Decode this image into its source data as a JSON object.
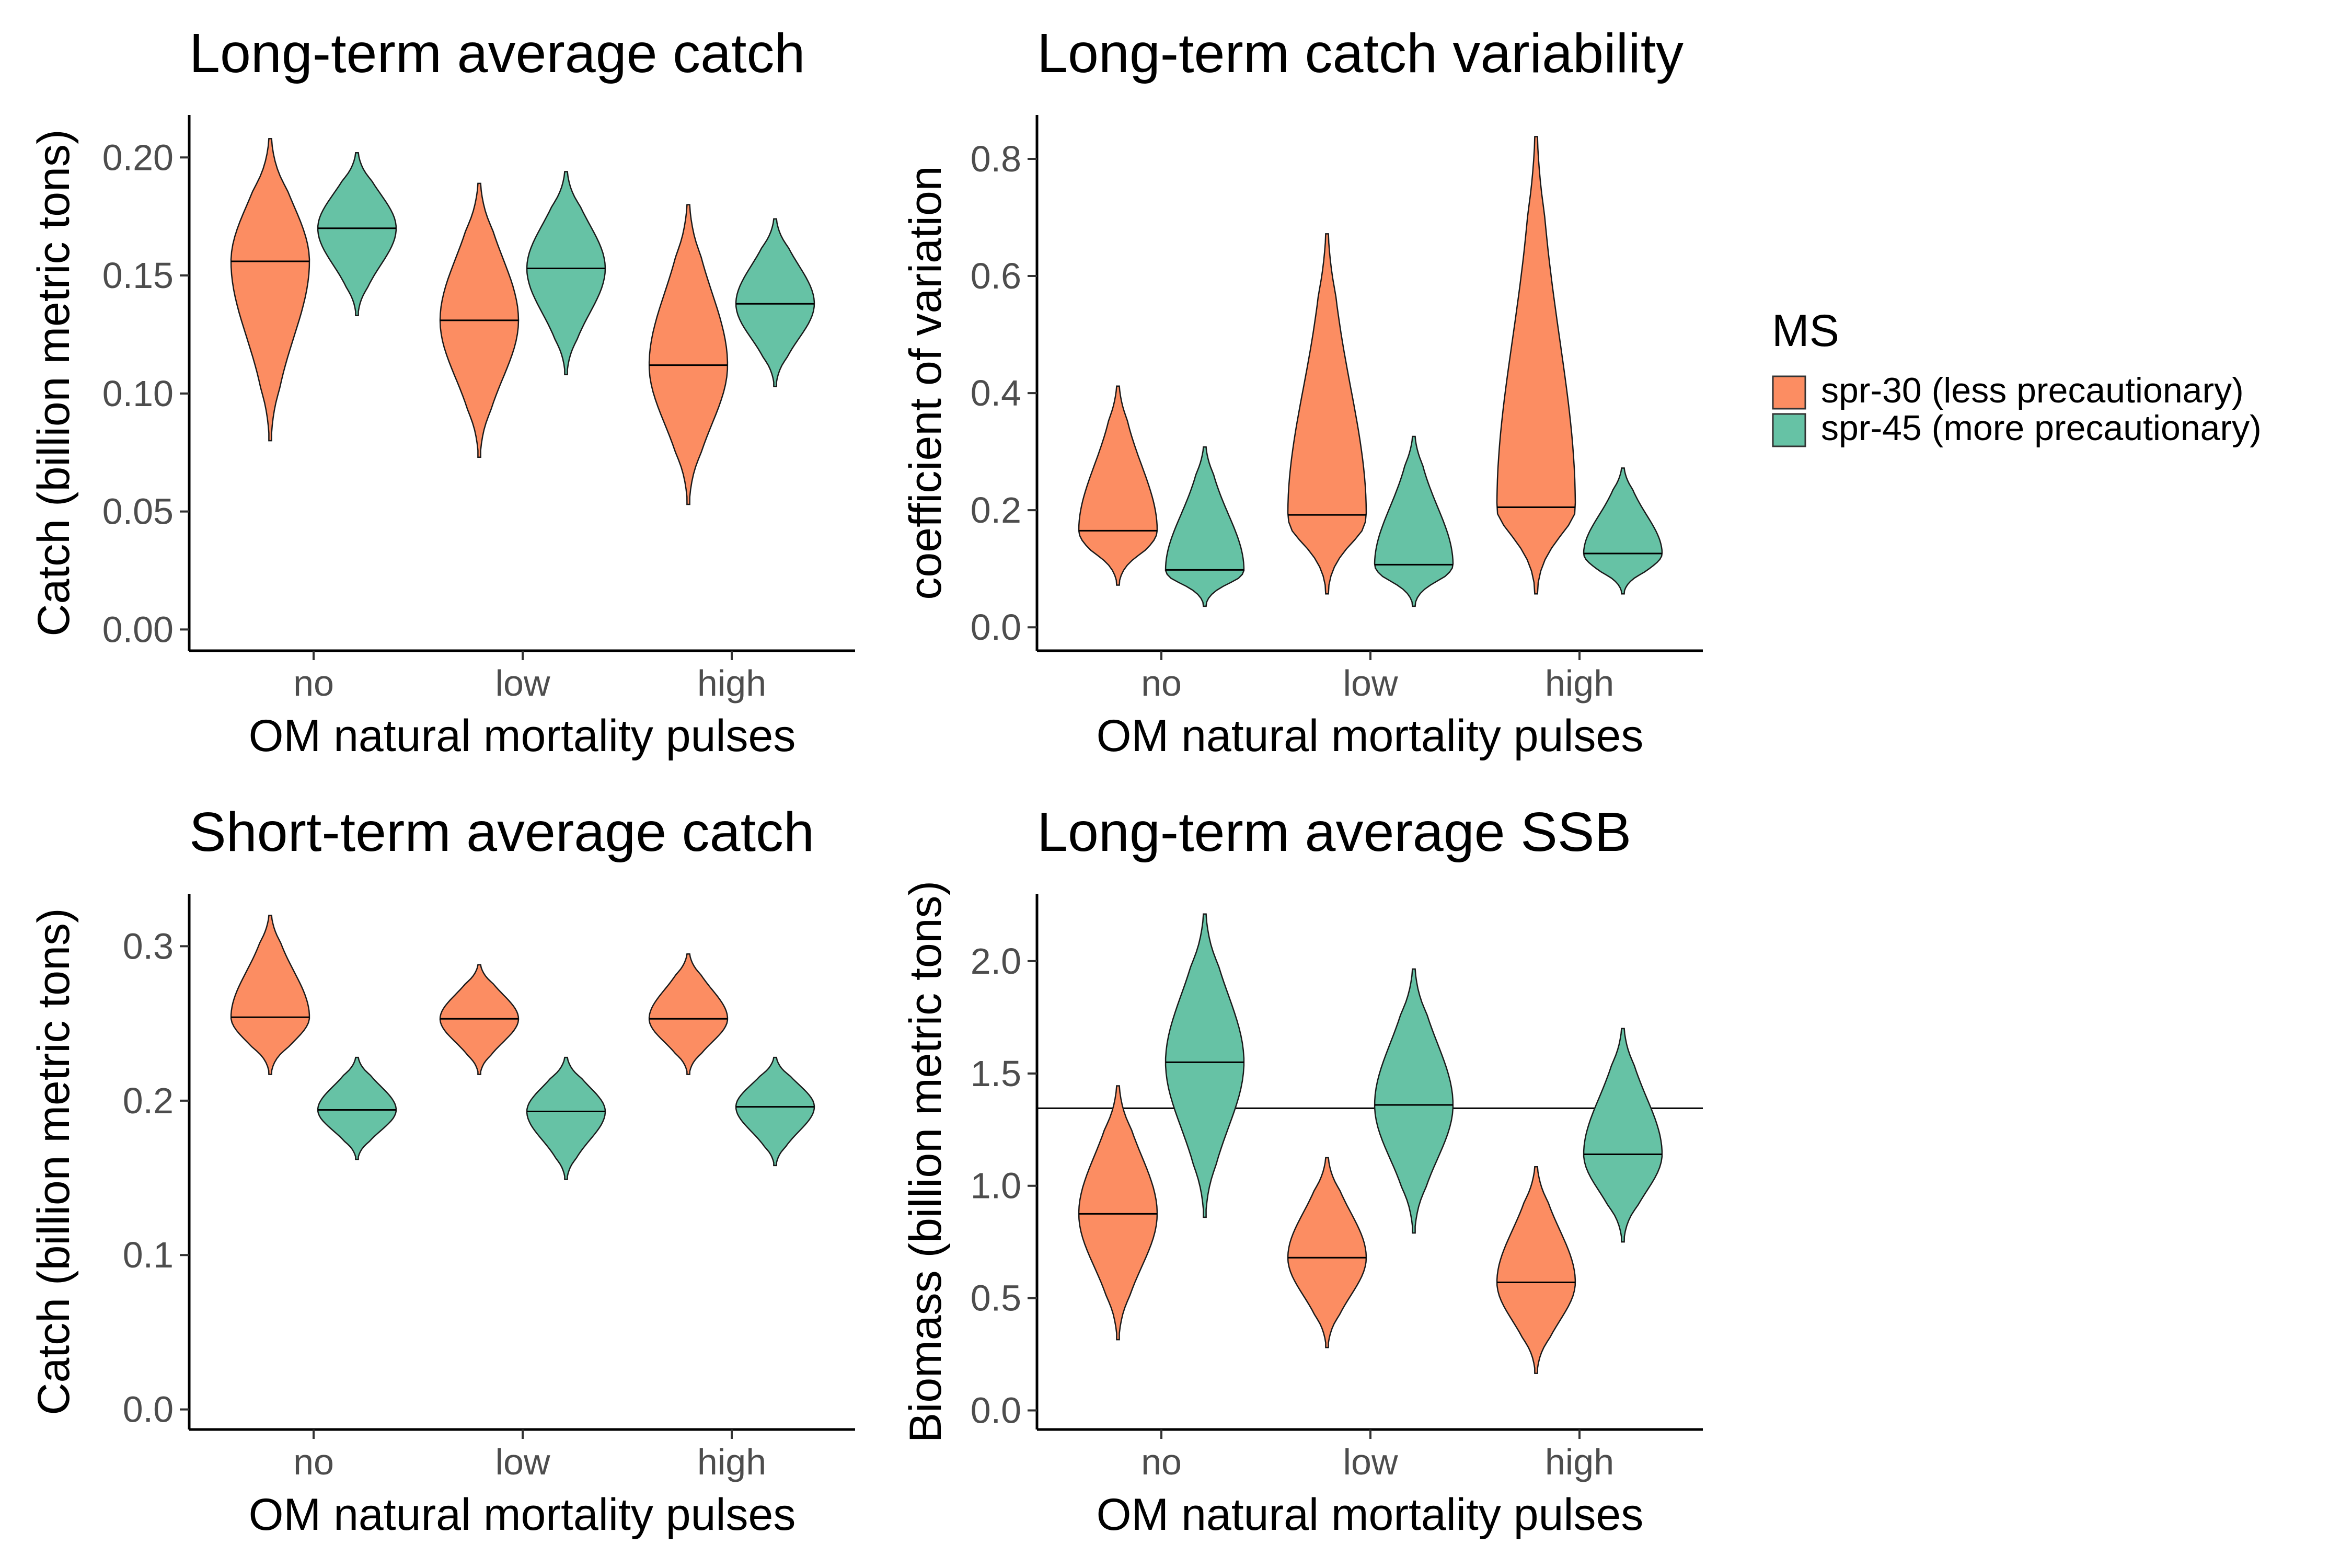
{
  "colors": {
    "spr30": "#FC8D62",
    "spr45": "#66C2A5",
    "axis": "#000000",
    "tick_text": "#4d4d4d"
  },
  "legend": {
    "title": "MS",
    "items": [
      {
        "label": "spr-30 (less precautionary)",
        "color": "#FC8D62"
      },
      {
        "label": "spr-45 (more precautionary)",
        "color": "#66C2A5"
      }
    ],
    "placement": "right"
  },
  "chart_data": [
    {
      "type": "violin",
      "title": "Long-term average catch",
      "xlabel": "OM natural mortality pulses",
      "ylabel": "Catch (billion metric tons)",
      "categories": [
        "no",
        "low",
        "high"
      ],
      "ylim": [
        -0.009,
        0.218
      ],
      "yticks": [
        "0.00",
        "0.05",
        "0.10",
        "0.15",
        "0.20"
      ],
      "series": [
        {
          "name": "spr-30 (less precautionary)",
          "medians": [
            0.156,
            0.131,
            0.112
          ],
          "ranges": [
            [
              0.08,
              0.208
            ],
            [
              0.073,
              0.189
            ],
            [
              0.053,
              0.18
            ]
          ]
        },
        {
          "name": "spr-45 (more precautionary)",
          "medians": [
            0.17,
            0.153,
            0.138
          ],
          "ranges": [
            [
              0.133,
              0.202
            ],
            [
              0.108,
              0.194
            ],
            [
              0.103,
              0.174
            ]
          ]
        }
      ]
    },
    {
      "type": "violin",
      "title": "Long-term catch variability",
      "xlabel": "OM natural mortality pulses",
      "ylabel": "coefficient of variation",
      "categories": [
        "no",
        "low",
        "high"
      ],
      "ylim": [
        -0.04,
        0.875
      ],
      "yticks": [
        "0.0",
        "0.2",
        "0.4",
        "0.6",
        "0.8"
      ],
      "series": [
        {
          "name": "spr-30 (less precautionary)",
          "medians": [
            0.165,
            0.192,
            0.205
          ],
          "ranges": [
            [
              0.072,
              0.412
            ],
            [
              0.057,
              0.672
            ],
            [
              0.057,
              0.838
            ]
          ]
        },
        {
          "name": "spr-45 (more precautionary)",
          "medians": [
            0.098,
            0.107,
            0.126
          ],
          "ranges": [
            [
              0.036,
              0.308
            ],
            [
              0.036,
              0.326
            ],
            [
              0.057,
              0.272
            ]
          ]
        }
      ]
    },
    {
      "type": "violin",
      "title": "Short-term average catch",
      "xlabel": "OM natural mortality pulses",
      "ylabel": "Catch (billion metric tons)",
      "categories": [
        "no",
        "low",
        "high"
      ],
      "ylim": [
        -0.013,
        0.334
      ],
      "yticks": [
        "0.0",
        "0.1",
        "0.2",
        "0.3"
      ],
      "series": [
        {
          "name": "spr-30 (less precautionary)",
          "medians": [
            0.254,
            0.253,
            0.253
          ],
          "ranges": [
            [
              0.217,
              0.32
            ],
            [
              0.217,
              0.288
            ],
            [
              0.217,
              0.295
            ]
          ]
        },
        {
          "name": "spr-45 (more precautionary)",
          "medians": [
            0.194,
            0.193,
            0.196
          ],
          "ranges": [
            [
              0.162,
              0.228
            ],
            [
              0.149,
              0.228
            ],
            [
              0.158,
              0.228
            ]
          ]
        }
      ]
    },
    {
      "type": "violin",
      "title": "Long-term average SSB",
      "xlabel": "OM natural mortality pulses",
      "ylabel": "Biomass (billion metric tons)",
      "categories": [
        "no",
        "low",
        "high"
      ],
      "ylim": [
        -0.085,
        2.3
      ],
      "yticks": [
        "0.0",
        "0.5",
        "1.0",
        "1.5",
        "2.0"
      ],
      "reference_line": 1.345,
      "series": [
        {
          "name": "spr-30 (less precautionary)",
          "medians": [
            0.875,
            0.68,
            0.57
          ],
          "ranges": [
            [
              0.315,
              1.445
            ],
            [
              0.28,
              1.125
            ],
            [
              0.165,
              1.085
            ]
          ]
        },
        {
          "name": "spr-45 (more precautionary)",
          "medians": [
            1.55,
            1.36,
            1.14
          ],
          "ranges": [
            [
              0.86,
              2.21
            ],
            [
              0.79,
              1.965
            ],
            [
              0.75,
              1.7
            ]
          ]
        }
      ]
    }
  ]
}
